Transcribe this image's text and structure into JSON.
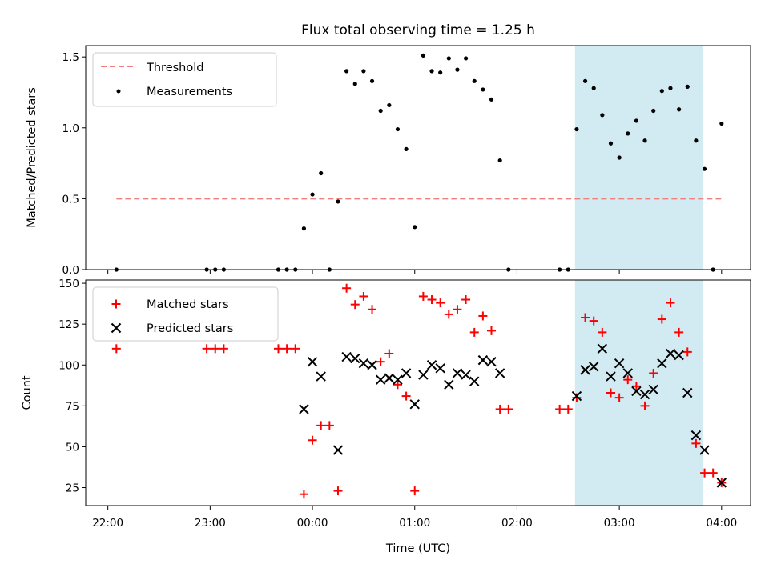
{
  "title": "Flux total observing time = 1.25 h",
  "xlabel": "Time (UTC)",
  "x_ticks": [
    "22:00",
    "23:00",
    "00:00",
    "01:00",
    "02:00",
    "03:00",
    "04:00"
  ],
  "colors": {
    "threshold": "#f08080",
    "measurements": "#000000",
    "matched": "#ff0000",
    "predicted": "#000000",
    "highlight": "#add8e6"
  },
  "chart_data": [
    {
      "type": "scatter",
      "ylabel": "Matched/Predicted stars",
      "xlim": [
        "21:47",
        "04:17"
      ],
      "ylim": [
        0,
        1.58
      ],
      "yticks": [
        "0.0",
        "0.5",
        "1.0",
        "1.5"
      ],
      "highlight_span": [
        "02:34",
        "03:49"
      ],
      "legend": {
        "placement": "upper-left",
        "entries": [
          "Threshold",
          "Measurements"
        ]
      },
      "series": [
        {
          "name": "Threshold",
          "kind": "dashed-line",
          "x": [
            "22:05",
            "04:00"
          ],
          "y": [
            0.5,
            0.5
          ]
        },
        {
          "name": "Measurements",
          "kind": "dots",
          "points": [
            [
              "22:05",
              0.0
            ],
            [
              "22:58",
              0.0
            ],
            [
              "23:03",
              0.0
            ],
            [
              "23:08",
              0.0
            ],
            [
              "23:40",
              0.0
            ],
            [
              "23:45",
              0.0
            ],
            [
              "23:50",
              0.0
            ],
            [
              "23:55",
              0.29
            ],
            [
              "00:00",
              0.53
            ],
            [
              "00:05",
              0.68
            ],
            [
              "00:10",
              0.0
            ],
            [
              "00:15",
              0.48
            ],
            [
              "00:20",
              1.4
            ],
            [
              "00:25",
              1.31
            ],
            [
              "00:30",
              1.4
            ],
            [
              "00:35",
              1.33
            ],
            [
              "00:40",
              1.12
            ],
            [
              "00:45",
              1.16
            ],
            [
              "00:50",
              0.99
            ],
            [
              "00:55",
              0.85
            ],
            [
              "01:00",
              0.3
            ],
            [
              "01:05",
              1.51
            ],
            [
              "01:10",
              1.4
            ],
            [
              "01:15",
              1.39
            ],
            [
              "01:20",
              1.49
            ],
            [
              "01:25",
              1.41
            ],
            [
              "01:30",
              1.49
            ],
            [
              "01:35",
              1.33
            ],
            [
              "01:40",
              1.27
            ],
            [
              "01:45",
              1.2
            ],
            [
              "01:50",
              0.77
            ],
            [
              "01:55",
              0.0
            ],
            [
              "02:25",
              0.0
            ],
            [
              "02:30",
              0.0
            ],
            [
              "02:35",
              0.99
            ],
            [
              "02:40",
              1.33
            ],
            [
              "02:45",
              1.28
            ],
            [
              "02:50",
              1.09
            ],
            [
              "02:55",
              0.89
            ],
            [
              "03:00",
              0.79
            ],
            [
              "03:05",
              0.96
            ],
            [
              "03:10",
              1.05
            ],
            [
              "03:15",
              0.91
            ],
            [
              "03:20",
              1.12
            ],
            [
              "03:25",
              1.26
            ],
            [
              "03:30",
              1.28
            ],
            [
              "03:35",
              1.13
            ],
            [
              "03:40",
              1.29
            ],
            [
              "03:45",
              0.91
            ],
            [
              "03:50",
              0.71
            ],
            [
              "03:55",
              0.0
            ],
            [
              "04:00",
              1.03
            ]
          ]
        }
      ]
    },
    {
      "type": "scatter",
      "ylabel": "Count",
      "xlim": [
        "21:47",
        "04:17"
      ],
      "ylim": [
        14,
        152
      ],
      "yticks": [
        "25",
        "50",
        "75",
        "100",
        "125",
        "150"
      ],
      "highlight_span": [
        "02:34",
        "03:49"
      ],
      "legend": {
        "placement": "upper-left",
        "entries": [
          "Matched stars",
          "Predicted stars"
        ]
      },
      "series": [
        {
          "name": "Matched stars",
          "marker": "plus",
          "points": [
            [
              "22:05",
              110
            ],
            [
              "22:58",
              110
            ],
            [
              "23:03",
              110
            ],
            [
              "23:08",
              110
            ],
            [
              "23:40",
              110
            ],
            [
              "23:45",
              110
            ],
            [
              "23:50",
              110
            ],
            [
              "23:55",
              21
            ],
            [
              "00:00",
              54
            ],
            [
              "00:05",
              63
            ],
            [
              "00:10",
              63
            ],
            [
              "00:15",
              23
            ],
            [
              "00:20",
              147
            ],
            [
              "00:25",
              137
            ],
            [
              "00:30",
              142
            ],
            [
              "00:35",
              134
            ],
            [
              "00:40",
              102
            ],
            [
              "00:45",
              107
            ],
            [
              "00:50",
              88
            ],
            [
              "00:55",
              81
            ],
            [
              "01:00",
              23
            ],
            [
              "01:05",
              142
            ],
            [
              "01:10",
              140
            ],
            [
              "01:15",
              138
            ],
            [
              "01:20",
              131
            ],
            [
              "01:25",
              134
            ],
            [
              "01:30",
              140
            ],
            [
              "01:35",
              120
            ],
            [
              "01:40",
              130
            ],
            [
              "01:45",
              121
            ],
            [
              "01:50",
              73
            ],
            [
              "01:55",
              73
            ],
            [
              "02:25",
              73
            ],
            [
              "02:30",
              73
            ],
            [
              "02:35",
              80
            ],
            [
              "02:40",
              129
            ],
            [
              "02:45",
              127
            ],
            [
              "02:50",
              120
            ],
            [
              "02:55",
              83
            ],
            [
              "03:00",
              80
            ],
            [
              "03:05",
              91
            ],
            [
              "03:10",
              87
            ],
            [
              "03:15",
              75
            ],
            [
              "03:20",
              95
            ],
            [
              "03:25",
              128
            ],
            [
              "03:30",
              138
            ],
            [
              "03:35",
              120
            ],
            [
              "03:40",
              108
            ],
            [
              "03:45",
              52
            ],
            [
              "03:50",
              34
            ],
            [
              "03:55",
              34
            ],
            [
              "04:00",
              28
            ]
          ]
        },
        {
          "name": "Predicted stars",
          "marker": "x",
          "points": [
            [
              "23:55",
              73
            ],
            [
              "00:00",
              102
            ],
            [
              "00:05",
              93
            ],
            [
              "00:15",
              48
            ],
            [
              "00:20",
              105
            ],
            [
              "00:25",
              104
            ],
            [
              "00:30",
              101
            ],
            [
              "00:35",
              100
            ],
            [
              "00:40",
              91
            ],
            [
              "00:45",
              92
            ],
            [
              "00:50",
              91
            ],
            [
              "00:55",
              95
            ],
            [
              "01:00",
              76
            ],
            [
              "01:05",
              94
            ],
            [
              "01:10",
              100
            ],
            [
              "01:15",
              98
            ],
            [
              "01:20",
              88
            ],
            [
              "01:25",
              95
            ],
            [
              "01:30",
              94
            ],
            [
              "01:35",
              90
            ],
            [
              "01:40",
              103
            ],
            [
              "01:45",
              102
            ],
            [
              "01:50",
              95
            ],
            [
              "02:35",
              81
            ],
            [
              "02:40",
              97
            ],
            [
              "02:45",
              99
            ],
            [
              "02:50",
              110
            ],
            [
              "02:55",
              93
            ],
            [
              "03:00",
              101
            ],
            [
              "03:05",
              95
            ],
            [
              "03:10",
              84
            ],
            [
              "03:15",
              82
            ],
            [
              "03:20",
              85
            ],
            [
              "03:25",
              101
            ],
            [
              "03:30",
              107
            ],
            [
              "03:35",
              106
            ],
            [
              "03:40",
              83
            ],
            [
              "03:45",
              57
            ],
            [
              "03:50",
              48
            ],
            [
              "04:00",
              28
            ]
          ]
        }
      ]
    }
  ]
}
